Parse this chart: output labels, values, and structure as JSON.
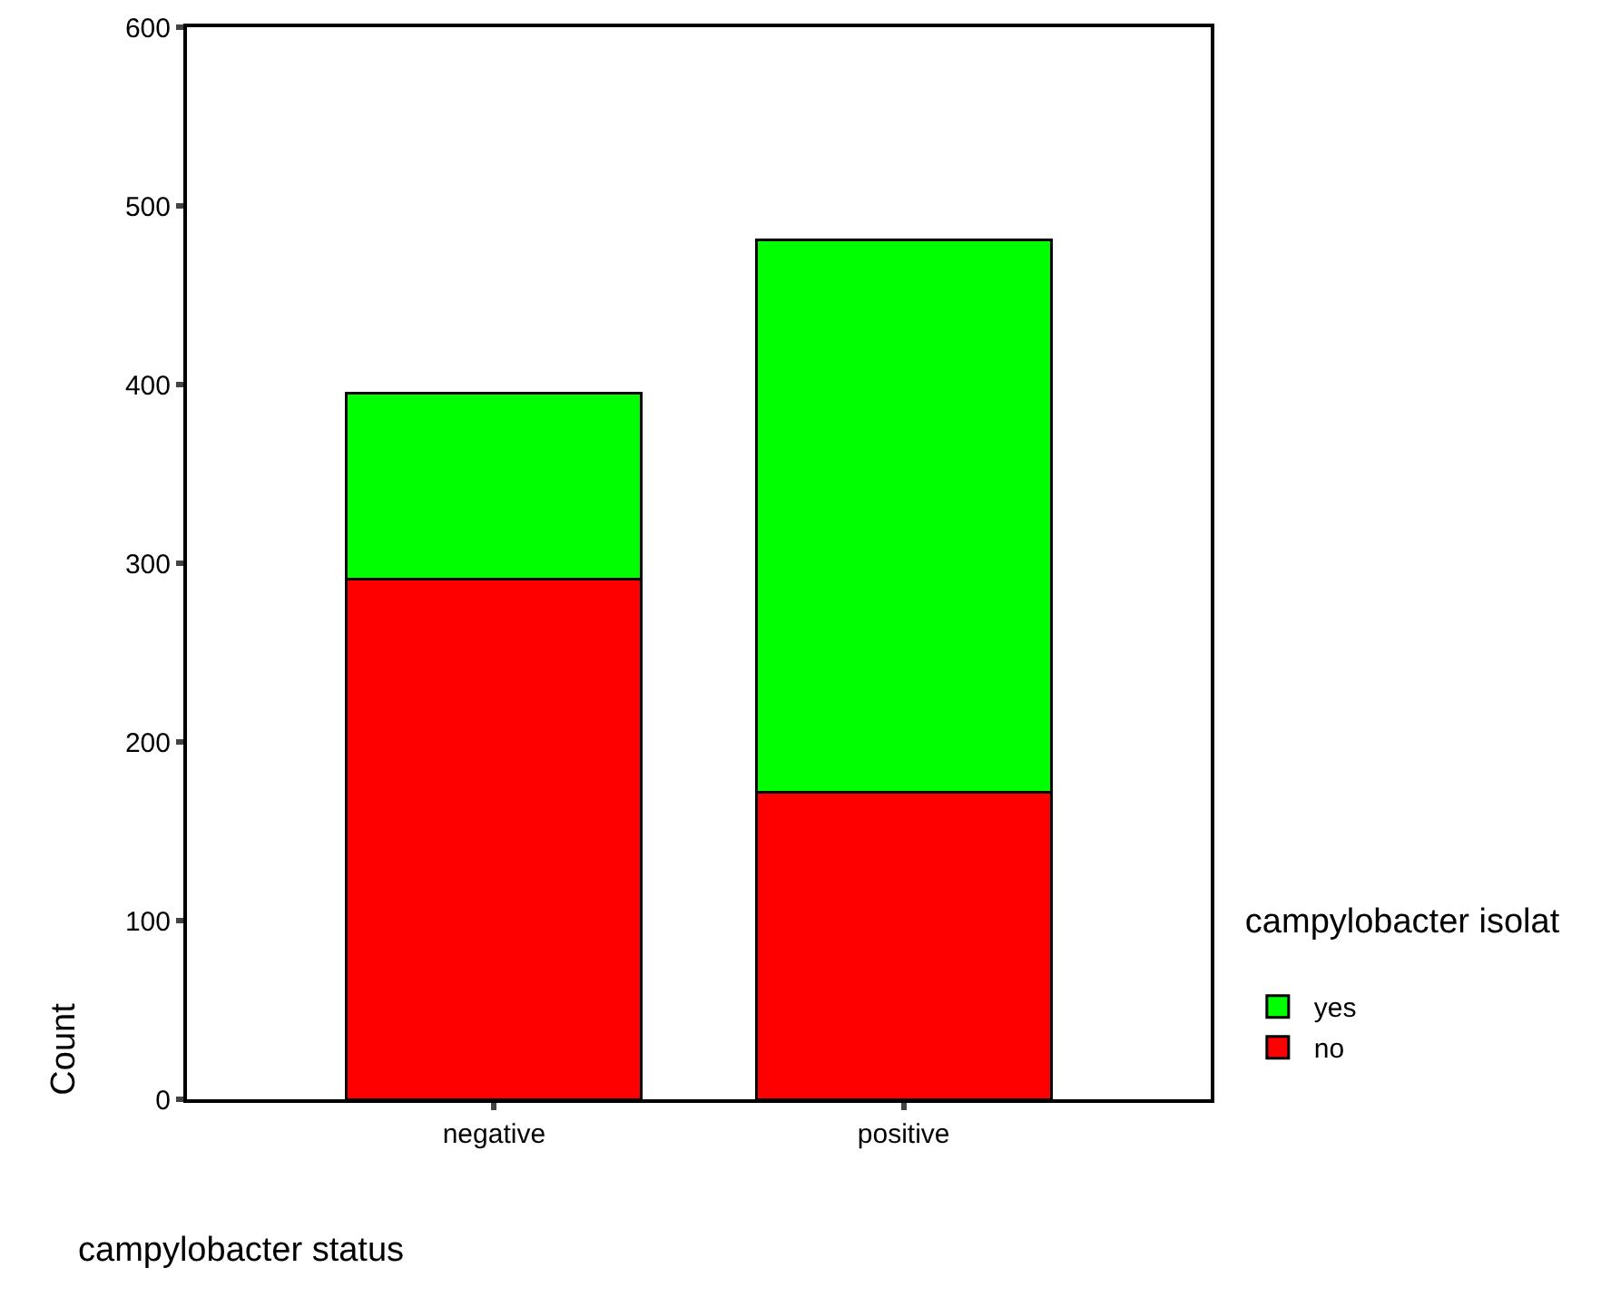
{
  "chart_data": {
    "type": "bar",
    "stacked": true,
    "xlabel": "campylobacter status",
    "ylabel": "Count",
    "legend_title": "campylobacter isolat",
    "legend": "right",
    "grid": false,
    "categories": [
      "negative",
      "positive"
    ],
    "series": [
      {
        "name": "no",
        "color": "#ff0000",
        "values": [
          291,
          172
        ]
      },
      {
        "name": "yes",
        "color": "#00ff00",
        "values": [
          104,
          309
        ]
      }
    ],
    "ylim": [
      0,
      600
    ],
    "yticks": [
      0,
      100,
      200,
      300,
      400,
      500,
      600
    ]
  }
}
